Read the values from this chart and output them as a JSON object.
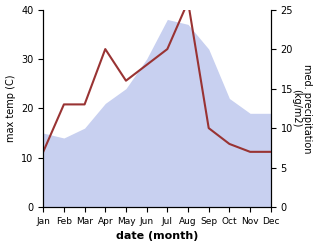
{
  "months": [
    "Jan",
    "Feb",
    "Mar",
    "Apr",
    "May",
    "Jun",
    "Jul",
    "Aug",
    "Sep",
    "Oct",
    "Nov",
    "Dec"
  ],
  "temp": [
    15,
    14,
    16,
    21,
    24,
    30,
    38,
    37,
    32,
    22,
    19,
    19
  ],
  "precip": [
    7,
    13,
    13,
    20,
    16,
    18,
    20,
    26,
    10,
    8,
    7,
    7
  ],
  "precip_color": "#993333",
  "temp_fill_color": "#c8d0f0",
  "ylabel_left": "max temp (C)",
  "ylabel_right": "med. precipitation\n(kg/m2)",
  "xlabel": "date (month)",
  "ylim_left": [
    0,
    40
  ],
  "ylim_right": [
    0,
    25
  ],
  "yticks_left": [
    0,
    10,
    20,
    30,
    40
  ],
  "yticks_right": [
    0,
    5,
    10,
    15,
    20,
    25
  ],
  "bg_color": "#ffffff"
}
